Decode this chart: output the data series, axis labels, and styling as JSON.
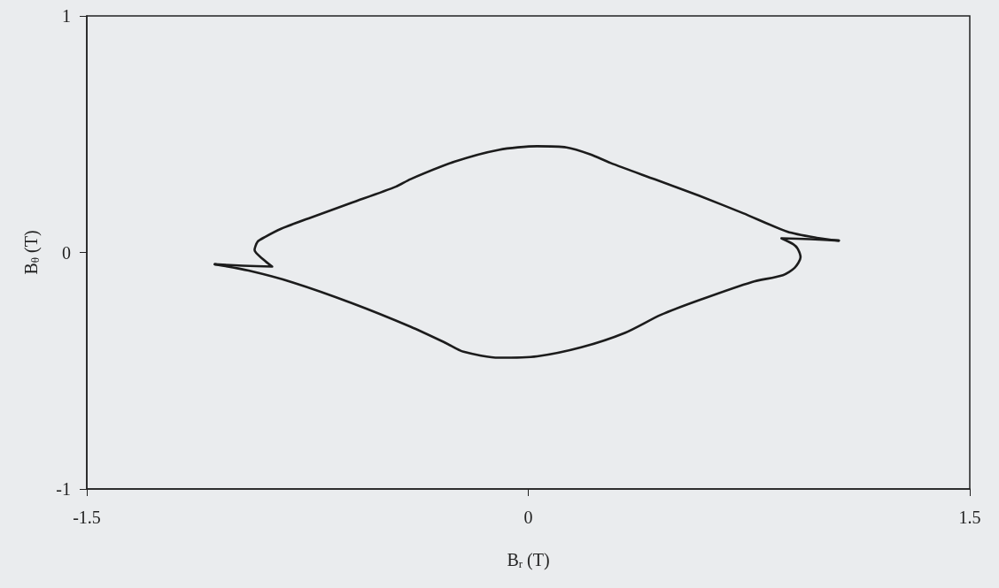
{
  "chart_data": {
    "type": "line",
    "xlabel": "B$_{r}$ (T)",
    "ylabel": "B$_{θ}$ (T)",
    "series": [
      {
        "color": "#1c1c1c",
        "x": [
          -1.065,
          -0.97,
          -0.87,
          -0.9,
          -0.93,
          -0.92,
          -0.895,
          -0.84,
          -0.74,
          -0.6,
          -0.45,
          -0.4,
          -0.25,
          -0.1,
          0.03,
          0.13,
          0.21,
          0.28,
          0.43,
          0.58,
          0.73,
          0.88,
          0.98,
          1.055
        ],
        "values": [
          -0.05,
          -0.056,
          -0.06,
          -0.03,
          0.01,
          0.045,
          0.065,
          0.1,
          0.147,
          0.21,
          0.278,
          0.31,
          0.384,
          0.434,
          0.449,
          0.444,
          0.415,
          0.378,
          0.309,
          0.24,
          0.166,
          0.088,
          0.062,
          0.05
        ]
      },
      {
        "color": "#1c1c1c",
        "x": [
          1.055,
          0.96,
          0.86,
          0.9,
          0.915,
          0.925,
          0.905,
          0.865,
          0.76,
          0.58,
          0.45,
          0.33,
          0.18,
          0.03,
          -0.1,
          -0.22,
          -0.28,
          -0.4,
          -0.6,
          -0.8,
          -0.95,
          -1.065
        ],
        "values": [
          0.05,
          0.056,
          0.06,
          0.035,
          0.016,
          -0.021,
          -0.065,
          -0.096,
          -0.125,
          -0.202,
          -0.264,
          -0.339,
          -0.401,
          -0.439,
          -0.445,
          -0.42,
          -0.383,
          -0.314,
          -0.214,
          -0.127,
          -0.077,
          -0.05
        ]
      }
    ],
    "xlim": [
      -1.5,
      1.5
    ],
    "ylim": [
      -1,
      1
    ],
    "xticks": [
      -1.5,
      0,
      1.5
    ],
    "yticks": [
      -1,
      0,
      1
    ]
  }
}
